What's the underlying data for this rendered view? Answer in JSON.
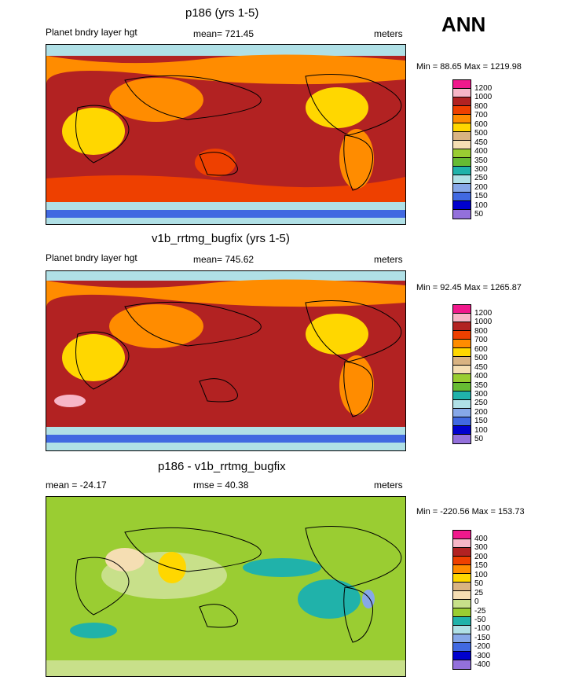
{
  "season": "ANN",
  "panels": [
    {
      "title": "p186 (yrs 1-5)",
      "left_label": "Planet bndry layer hgt",
      "center_label": "mean= 721.45",
      "units": "meters",
      "minmax": "Min =  88.65 Max = 1219.98",
      "levels": [
        "1200",
        "1000",
        "800",
        "700",
        "600",
        "500",
        "450",
        "400",
        "350",
        "300",
        "250",
        "200",
        "150",
        "100",
        "50"
      ]
    },
    {
      "title": "v1b_rrtmg_bugfix (yrs 1-5)",
      "left_label": "Planet bndry layer hgt",
      "center_label": "mean= 745.62",
      "units": "meters",
      "minmax": "Min =  92.45 Max = 1265.87",
      "levels": [
        "1200",
        "1000",
        "800",
        "700",
        "600",
        "500",
        "450",
        "400",
        "350",
        "300",
        "250",
        "200",
        "150",
        "100",
        "50"
      ]
    },
    {
      "title": "p186 - v1b_rrtmg_bugfix",
      "left_label": "mean = -24.17",
      "center_label": "rmse =  40.38",
      "units": "meters",
      "minmax": "Min = -220.56 Max = 153.73",
      "levels": [
        "400",
        "300",
        "200",
        "150",
        "100",
        "50",
        "25",
        "0",
        "-25",
        "-50",
        "-100",
        "-150",
        "-200",
        "-300",
        "-400"
      ]
    }
  ],
  "colors": {
    "abs_palette": [
      "#f0198c",
      "#f7b6c7",
      "#b22222",
      "#ee4000",
      "#ff8c00",
      "#ffd700",
      "#d9b382",
      "#f5deb3",
      "#9acd32",
      "#66bb33",
      "#20b2aa",
      "#b0e0e6",
      "#87a8e8",
      "#4169e1",
      "#0000cd",
      "#9370db"
    ],
    "diff_palette": [
      "#f0198c",
      "#f7b6c7",
      "#b22222",
      "#ee4000",
      "#ff8c00",
      "#ffd700",
      "#d9b382",
      "#f5deb3",
      "#c8e08a",
      "#9acd32",
      "#20b2aa",
      "#b0e0e6",
      "#87a8e8",
      "#4169e1",
      "#0000cd",
      "#9370db"
    ]
  },
  "chart_data": [
    {
      "type": "heatmap",
      "title": "p186 (yrs 1-5)",
      "variable": "Planet bndry layer hgt",
      "units": "meters",
      "mean": 721.45,
      "min": 88.65,
      "max": 1219.98,
      "contour_levels": [
        50,
        100,
        150,
        200,
        250,
        300,
        350,
        400,
        450,
        500,
        600,
        700,
        800,
        1000,
        1200
      ],
      "xrange": [
        0,
        360
      ],
      "yrange": [
        -90,
        90
      ]
    },
    {
      "type": "heatmap",
      "title": "v1b_rrtmg_bugfix (yrs 1-5)",
      "variable": "Planet bndry layer hgt",
      "units": "meters",
      "mean": 745.62,
      "min": 92.45,
      "max": 1265.87,
      "contour_levels": [
        50,
        100,
        150,
        200,
        250,
        300,
        350,
        400,
        450,
        500,
        600,
        700,
        800,
        1000,
        1200
      ],
      "xrange": [
        0,
        360
      ],
      "yrange": [
        -90,
        90
      ]
    },
    {
      "type": "heatmap",
      "title": "p186 - v1b_rrtmg_bugfix",
      "units": "meters",
      "mean": -24.17,
      "rmse": 40.38,
      "min": -220.56,
      "max": 153.73,
      "contour_levels": [
        -400,
        -300,
        -200,
        -150,
        -100,
        -50,
        -25,
        0,
        25,
        50,
        100,
        150,
        200,
        300,
        400
      ],
      "xrange": [
        0,
        360
      ],
      "yrange": [
        -90,
        90
      ]
    }
  ]
}
